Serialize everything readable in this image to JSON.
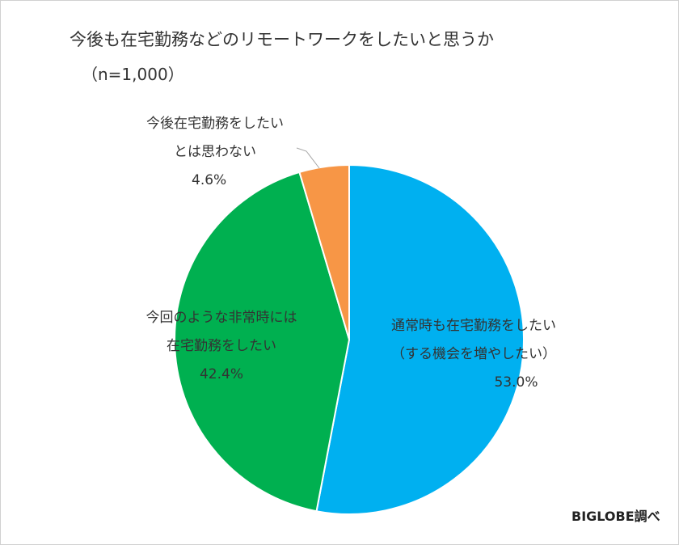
{
  "chart_data": {
    "type": "pie",
    "title": "今後も在宅勤務などのリモートワークをしたいと思うか",
    "subtitle": "（n=1,000）",
    "slices": [
      {
        "label_lines": [
          "通常時も在宅勤務をしたい",
          "（する機会を増やしたい）"
        ],
        "value_label": "53.0%",
        "value": 53.0,
        "color": "#00b0f0"
      },
      {
        "label_lines": [
          "今回のような非常時には",
          "在宅勤務をしたい"
        ],
        "value_label": "42.4%",
        "value": 42.4,
        "color": "#00b050"
      },
      {
        "label_lines": [
          "今後在宅勤務をしたい",
          "とは思わない"
        ],
        "value_label": "4.6%",
        "value": 4.6,
        "color": "#f79646"
      }
    ]
  },
  "credit": "BIGLOBE調べ"
}
